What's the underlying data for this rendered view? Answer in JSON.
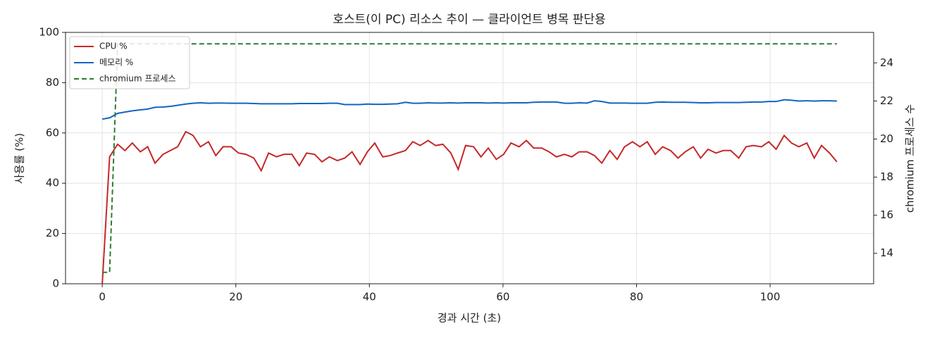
{
  "chart_data": {
    "type": "line",
    "title": "호스트(이 PC) 리소스 추이 — 클라이언트 병목 판단용",
    "x_label": "경과 시간 (초)",
    "y_label": "사용률 (%)",
    "y2_label": "chromium 프로세스 수",
    "x": [
      0,
      1.1,
      2.3,
      3.4,
      4.5,
      5.7,
      6.8,
      7.9,
      9.1,
      10.2,
      11.3,
      12.5,
      13.6,
      14.7,
      15.9,
      17.0,
      18.1,
      19.3,
      20.4,
      21.5,
      22.7,
      23.8,
      24.9,
      26.1,
      27.2,
      28.4,
      29.5,
      30.6,
      31.8,
      32.9,
      34.0,
      35.2,
      36.3,
      37.4,
      38.6,
      39.7,
      40.8,
      42.0,
      43.1,
      44.2,
      45.4,
      46.5,
      47.6,
      48.8,
      49.9,
      51.0,
      52.2,
      53.3,
      54.4,
      55.6,
      56.7,
      57.8,
      59.0,
      60.1,
      61.2,
      62.4,
      63.5,
      64.6,
      65.8,
      66.9,
      68.0,
      69.2,
      70.3,
      71.4,
      72.6,
      73.7,
      74.8,
      76.0,
      77.1,
      78.2,
      79.4,
      80.5,
      81.6,
      82.8,
      83.9,
      85.1,
      86.2,
      87.3,
      88.5,
      89.6,
      90.7,
      91.9,
      93.0,
      94.1,
      95.3,
      96.4,
      97.5,
      98.7,
      99.8,
      100.9,
      102.1,
      103.2,
      104.3,
      105.5,
      106.6,
      107.7,
      108.9,
      110.0
    ],
    "series": [
      {
        "name": "CPU %",
        "color": "#c62828",
        "values": [
          0,
          50.5,
          55.5,
          53,
          56,
          52.5,
          54.5,
          48,
          51.5,
          53,
          54.5,
          60.5,
          59,
          54.5,
          56.5,
          51,
          54.5,
          54.5,
          52,
          51.5,
          50,
          45,
          52,
          50.5,
          51.5,
          51.5,
          47,
          52,
          51.5,
          48.5,
          50.5,
          49,
          50,
          52.5,
          47.5,
          52.5,
          56,
          50.5,
          51,
          52,
          53,
          56.5,
          55,
          57,
          55,
          55.5,
          52,
          45.5,
          55,
          54.5,
          50.5,
          54,
          49.5,
          51.5,
          56,
          54.5,
          57,
          54,
          54,
          52.5,
          50.5,
          51.5,
          50.5,
          52.5,
          52.5,
          51,
          48,
          53,
          49.5,
          54.5,
          56.5,
          54.5,
          56.5,
          51.5,
          54.5,
          53,
          50,
          52.5,
          54.5,
          50,
          53.5,
          52,
          53,
          53,
          50,
          54.5,
          55,
          54.5,
          56.5,
          53.5,
          59,
          56,
          54.5,
          56,
          50,
          55,
          52,
          48.5
        ]
      },
      {
        "name": "메모리 %",
        "color": "#1565c0",
        "values": [
          65.5,
          66,
          67.8,
          68.3,
          68.8,
          69.2,
          69.5,
          70.2,
          70.3,
          70.6,
          71,
          71.5,
          71.8,
          72,
          71.8,
          71.9,
          71.9,
          71.8,
          71.8,
          71.8,
          71.7,
          71.6,
          71.6,
          71.6,
          71.6,
          71.6,
          71.7,
          71.7,
          71.7,
          71.7,
          71.8,
          71.8,
          71.3,
          71.3,
          71.3,
          71.5,
          71.4,
          71.4,
          71.5,
          71.6,
          72.2,
          71.8,
          71.8,
          72,
          71.9,
          71.9,
          72,
          71.9,
          72,
          72,
          72,
          71.9,
          72,
          71.9,
          72,
          72,
          72,
          72.2,
          72.3,
          72.3,
          72.3,
          71.8,
          71.8,
          72,
          71.9,
          72.8,
          72.5,
          71.9,
          71.9,
          71.9,
          71.8,
          71.8,
          71.8,
          72.2,
          72.3,
          72.2,
          72.2,
          72.2,
          72.1,
          72,
          72,
          72.1,
          72.1,
          72.1,
          72.1,
          72.2,
          72.3,
          72.3,
          72.5,
          72.5,
          73.2,
          73,
          72.7,
          72.8,
          72.7,
          72.8,
          72.8,
          72.7
        ]
      },
      {
        "name": "chromium 프로세스",
        "color": "#2e7d32",
        "dashed": true,
        "axis": "y2",
        "values": [
          13,
          13,
          25,
          25,
          25,
          25,
          25,
          25,
          25,
          25,
          25,
          25,
          25,
          25,
          25,
          25,
          25,
          25,
          25,
          25,
          25,
          25,
          25,
          25,
          25,
          25,
          25,
          25,
          25,
          25,
          25,
          25,
          25,
          25,
          25,
          25,
          25,
          25,
          25,
          25,
          25,
          25,
          25,
          25,
          25,
          25,
          25,
          25,
          25,
          25,
          25,
          25,
          25,
          25,
          25,
          25,
          25,
          25,
          25,
          25,
          25,
          25,
          25,
          25,
          25,
          25,
          25,
          25,
          25,
          25,
          25,
          25,
          25,
          25,
          25,
          25,
          25,
          25,
          25,
          25,
          25,
          25,
          25,
          25,
          25,
          25,
          25,
          25,
          25,
          25,
          25,
          25,
          25,
          25,
          25,
          25,
          25,
          25
        ]
      }
    ],
    "xlim": [
      -5.5,
      115.5
    ],
    "xticks": [
      0,
      20,
      40,
      60,
      80,
      100
    ],
    "ylim": [
      0,
      100
    ],
    "yticks": [
      0,
      20,
      40,
      60,
      80,
      100
    ],
    "y2lim": [
      12.4,
      25.6
    ],
    "y2ticks": [
      14,
      16,
      18,
      20,
      22,
      24
    ],
    "grid": true,
    "legend": "upper-left"
  }
}
